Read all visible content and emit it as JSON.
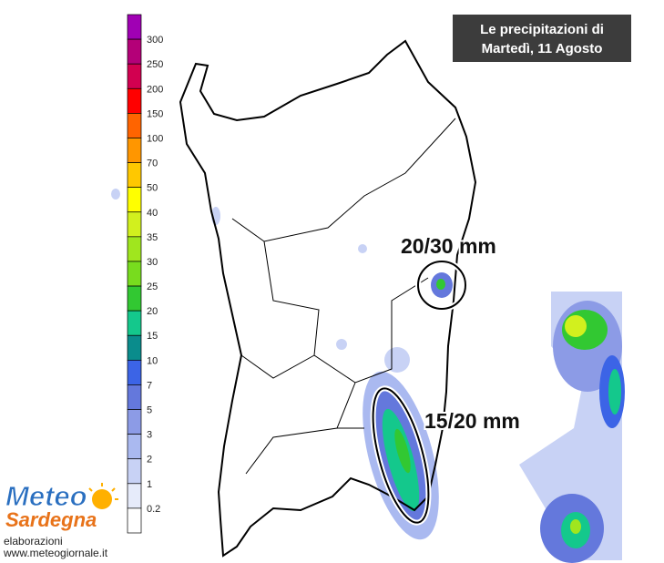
{
  "title": {
    "lines": [
      "Le precipitazioni di",
      "Martedì, 11 Agosto"
    ]
  },
  "legend": {
    "labels": [
      300,
      250,
      200,
      150,
      100,
      70,
      50,
      40,
      35,
      30,
      25,
      20,
      15,
      10,
      7,
      5,
      3,
      2,
      1,
      0.2
    ],
    "colors": [
      "#a000b4",
      "#b40078",
      "#d20050",
      "#ff0000",
      "#ff6400",
      "#ff9600",
      "#ffc800",
      "#ffff00",
      "#d2f01e",
      "#a0e61e",
      "#78dc1e",
      "#32c832",
      "#14c88c",
      "#0a8c8c",
      "#3c64e6",
      "#6478dc",
      "#8c9be6",
      "#aab9f0",
      "#c8d2f5",
      "#e6ebfa",
      "#ffffff"
    ]
  },
  "annotations": [
    "20/30 mm",
    "15/20 mm"
  ],
  "logo": {
    "brand": [
      "Meteo",
      "Sardegna"
    ],
    "credit": "elaborazioni",
    "url": "www.meteogiornale.it"
  }
}
